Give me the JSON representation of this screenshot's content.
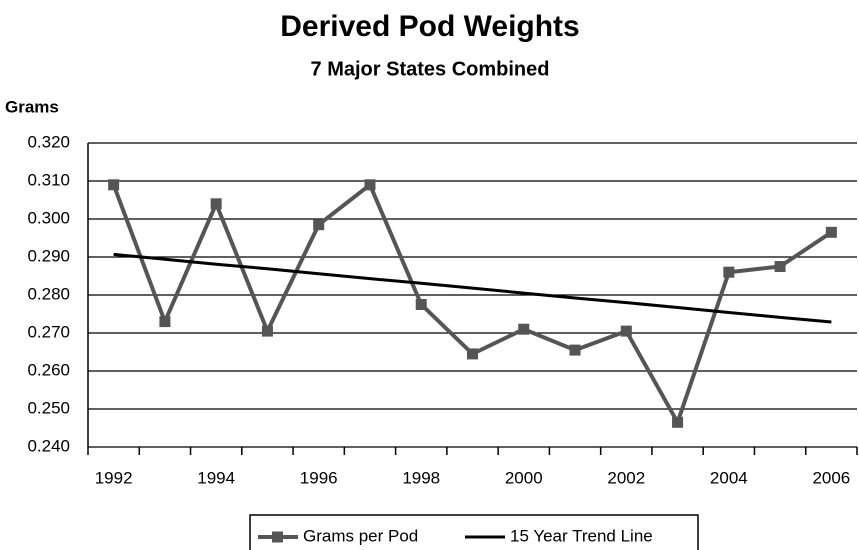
{
  "chart_data": {
    "type": "line",
    "title": "Derived Pod Weights",
    "subtitle": "7 Major States Combined",
    "y_label": "Grams",
    "categories": [
      "1992",
      null,
      "1994",
      null,
      "1996",
      null,
      "1998",
      null,
      "2000",
      null,
      "2002",
      null,
      "2004",
      null,
      "2006"
    ],
    "series": [
      {
        "name": "Grams per Pod",
        "color": "#555555",
        "marker": "square",
        "values": [
          0.309,
          0.273,
          0.304,
          0.2705,
          0.2985,
          0.309,
          0.2775,
          0.2645,
          0.271,
          0.2655,
          0.2705,
          0.2465,
          0.286,
          0.2875,
          0.2965
        ]
      },
      {
        "name": "15 Year Trend Line",
        "color": "#000000",
        "values": [
          0.2907,
          0.2894,
          0.2881,
          0.2869,
          0.2856,
          0.2843,
          0.2831,
          0.2818,
          0.2805,
          0.2792,
          0.278,
          0.2767,
          0.2754,
          0.2741,
          0.2729
        ]
      }
    ],
    "ylim": [
      0.24,
      0.32
    ],
    "yticks": [
      {
        "value": 0.24,
        "label": "0.240"
      },
      {
        "value": 0.25,
        "label": "0.250"
      },
      {
        "value": 0.26,
        "label": "0.260"
      },
      {
        "value": 0.27,
        "label": "0.270"
      },
      {
        "value": 0.28,
        "label": "0.280"
      },
      {
        "value": 0.29,
        "label": "0.290"
      },
      {
        "value": 0.3,
        "label": "0.300"
      },
      {
        "value": 0.31,
        "label": "0.310"
      },
      {
        "value": 0.32,
        "label": "0.320"
      }
    ],
    "grid": true
  }
}
